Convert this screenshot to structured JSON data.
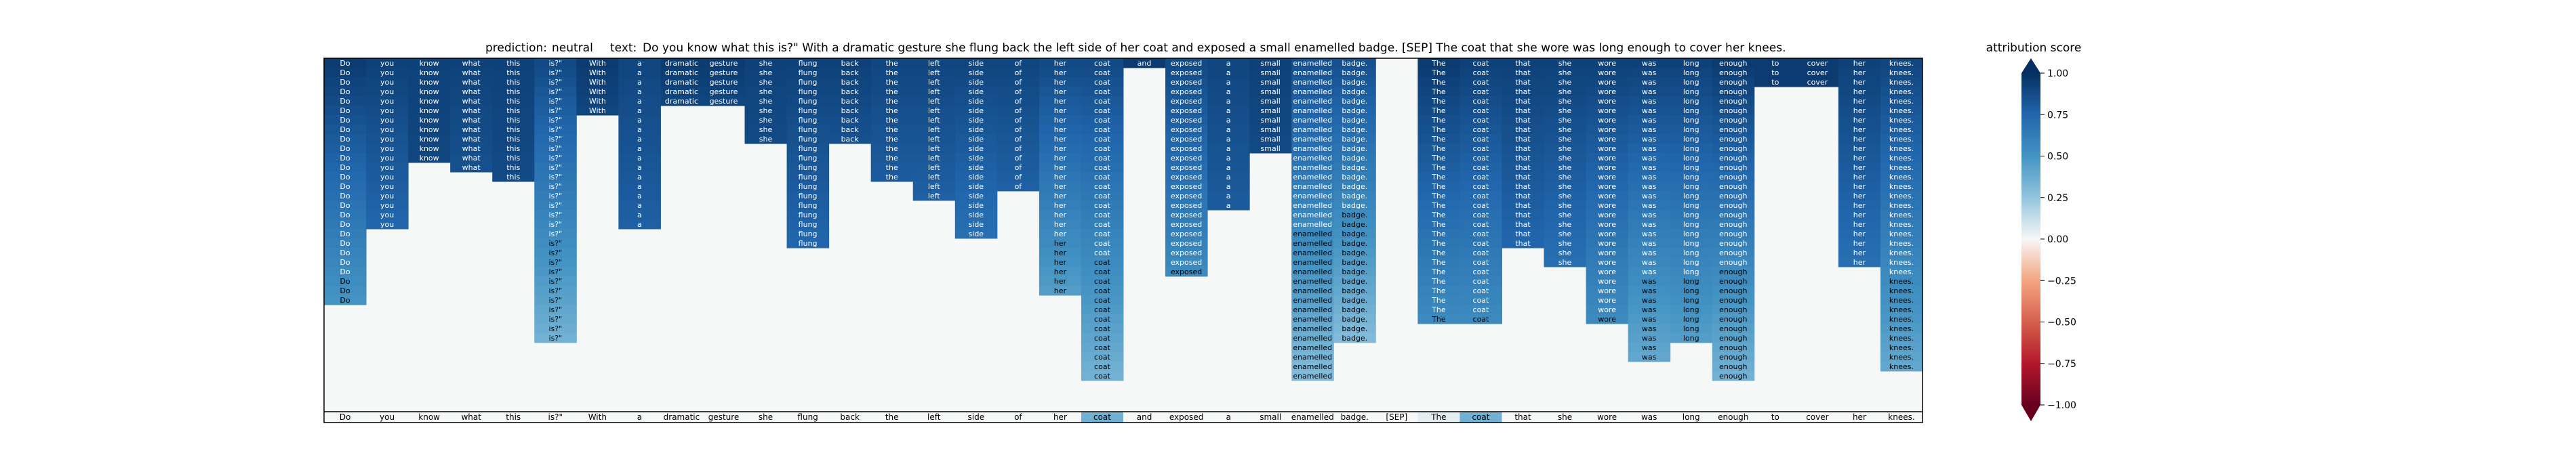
{
  "chart_data": {
    "type": "heatmap",
    "title": {
      "prediction_label": "prediction:",
      "prediction_value": "neutral",
      "text_label": "text:",
      "text_value": "Do you know what this is?\" With a dramatic gesture she flung back the left side of her coat and exposed a small enamelled badge. [SEP] The coat that she wore was long enough to cover her knees."
    },
    "tokens": [
      "Do",
      "you",
      "know",
      "what",
      "this",
      "is?\"",
      "With",
      "a",
      "dramatic",
      "gesture",
      "she",
      "flung",
      "back",
      "the",
      "left",
      "side",
      "of",
      "her",
      "coat",
      "and",
      "exposed",
      "a",
      "small",
      "enamelled",
      "badge.",
      "[SEP]",
      "The",
      "coat",
      "that",
      "she",
      "wore",
      "was",
      "long",
      "enough",
      "to",
      "cover",
      "her",
      "knees."
    ],
    "rows": 26,
    "colorbar": {
      "label": "attribution score",
      "min": -1.0,
      "max": 1.0,
      "ticks": [
        "1.00",
        "0.75",
        "0.50",
        "0.25",
        "0.00",
        "−0.25",
        "−0.50",
        "−0.75",
        "−1.00"
      ]
    },
    "top_row_zero_tokens": [
      "and",
      "[SEP]"
    ],
    "bottom_row_nonzero": {
      "coat": 0.35,
      "The": 0.05
    },
    "column_profiles": [
      {
        "token": "Do",
        "rows": 26,
        "peak": 0.95,
        "tail": 0.5
      },
      {
        "token": "you",
        "rows": 18,
        "peak": 0.92,
        "tail": 0.75
      },
      {
        "token": "know",
        "rows": 11,
        "peak": 0.92,
        "tail": 0.9
      },
      {
        "token": "what",
        "rows": 12,
        "peak": 0.92,
        "tail": 0.85
      },
      {
        "token": "this",
        "rows": 13,
        "peak": 0.92,
        "tail": 0.88
      },
      {
        "token": "is?\"",
        "rows": 30,
        "peak": 0.88,
        "tail": 0.35
      },
      {
        "token": "With",
        "rows": 6,
        "peak": 0.95,
        "tail": 0.9
      },
      {
        "token": "a",
        "rows": 18,
        "peak": 0.9,
        "tail": 0.78
      },
      {
        "token": "dramatic",
        "rows": 5,
        "peak": 0.95,
        "tail": 0.9
      },
      {
        "token": "gesture",
        "rows": 5,
        "peak": 0.95,
        "tail": 0.9
      },
      {
        "token": "she",
        "rows": 9,
        "peak": 0.92,
        "tail": 0.88
      },
      {
        "token": "flung",
        "rows": 20,
        "peak": 0.92,
        "tail": 0.75
      },
      {
        "token": "back",
        "rows": 9,
        "peak": 0.92,
        "tail": 0.85
      },
      {
        "token": "the",
        "rows": 13,
        "peak": 0.9,
        "tail": 0.8
      },
      {
        "token": "left",
        "rows": 15,
        "peak": 0.9,
        "tail": 0.78
      },
      {
        "token": "side",
        "rows": 19,
        "peak": 0.9,
        "tail": 0.7
      },
      {
        "token": "of",
        "rows": 14,
        "peak": 0.9,
        "tail": 0.78
      },
      {
        "token": "her",
        "rows": 25,
        "peak": 0.88,
        "tail": 0.45
      },
      {
        "token": "coat",
        "rows": 34,
        "peak": 0.88,
        "tail": 0.35
      },
      {
        "token": "and",
        "rows": 1,
        "peak": 0.95,
        "tail": 0.95
      },
      {
        "token": "exposed",
        "rows": 23,
        "peak": 0.88,
        "tail": 0.55
      },
      {
        "token": "a",
        "rows": 16,
        "peak": 0.9,
        "tail": 0.8
      },
      {
        "token": "small",
        "rows": 10,
        "peak": 0.92,
        "tail": 0.88
      },
      {
        "token": "enamelled",
        "rows": 34,
        "peak": 0.85,
        "tail": 0.3
      },
      {
        "token": "badge.",
        "rows": 30,
        "peak": 0.85,
        "tail": 0.3
      },
      {
        "token": "[SEP]",
        "rows": 0,
        "peak": 0,
        "tail": 0
      },
      {
        "token": "The",
        "rows": 28,
        "peak": 0.95,
        "tail": 0.55
      },
      {
        "token": "coat",
        "rows": 28,
        "peak": 0.92,
        "tail": 0.55
      },
      {
        "token": "that",
        "rows": 20,
        "peak": 0.92,
        "tail": 0.75
      },
      {
        "token": "she",
        "rows": 22,
        "peak": 0.92,
        "tail": 0.7
      },
      {
        "token": "wore",
        "rows": 28,
        "peak": 0.92,
        "tail": 0.55
      },
      {
        "token": "was",
        "rows": 32,
        "peak": 0.92,
        "tail": 0.4
      },
      {
        "token": "long",
        "rows": 30,
        "peak": 0.92,
        "tail": 0.45
      },
      {
        "token": "enough",
        "rows": 34,
        "peak": 0.95,
        "tail": 0.35
      },
      {
        "token": "to",
        "rows": 3,
        "peak": 0.95,
        "tail": 0.95
      },
      {
        "token": "cover",
        "rows": 3,
        "peak": 0.95,
        "tail": 0.95
      },
      {
        "token": "her",
        "rows": 22,
        "peak": 0.92,
        "tail": 0.7
      },
      {
        "token": "knees.",
        "rows": 33,
        "peak": 0.9,
        "tail": 0.4
      }
    ]
  }
}
